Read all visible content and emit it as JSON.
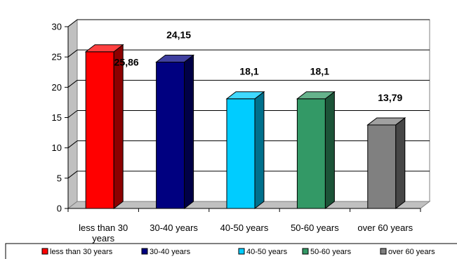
{
  "chart_data": {
    "type": "bar",
    "categories": [
      "less than 30 years",
      "30-40 years",
      "40-50 years",
      "50-60 years",
      "over 60 years"
    ],
    "values": [
      25.86,
      24.15,
      18.1,
      18.1,
      13.79
    ],
    "data_labels": [
      "25,86",
      "24,15",
      "18,1",
      "18,1",
      "13,79"
    ],
    "category_labels": [
      [
        "less than 30",
        "years"
      ],
      [
        "30-40 years"
      ],
      [
        "40-50 years"
      ],
      [
        "50-60 years"
      ],
      [
        "over 60 years"
      ]
    ],
    "colors": [
      "#ff0000",
      "#000080",
      "#00ccff",
      "#339966",
      "#808080"
    ],
    "ylim": [
      0,
      30
    ],
    "yticks": [
      "0",
      "5",
      "10",
      "15",
      "20",
      "25",
      "30"
    ],
    "grid": true,
    "legend": "bottom",
    "style": "3d"
  }
}
